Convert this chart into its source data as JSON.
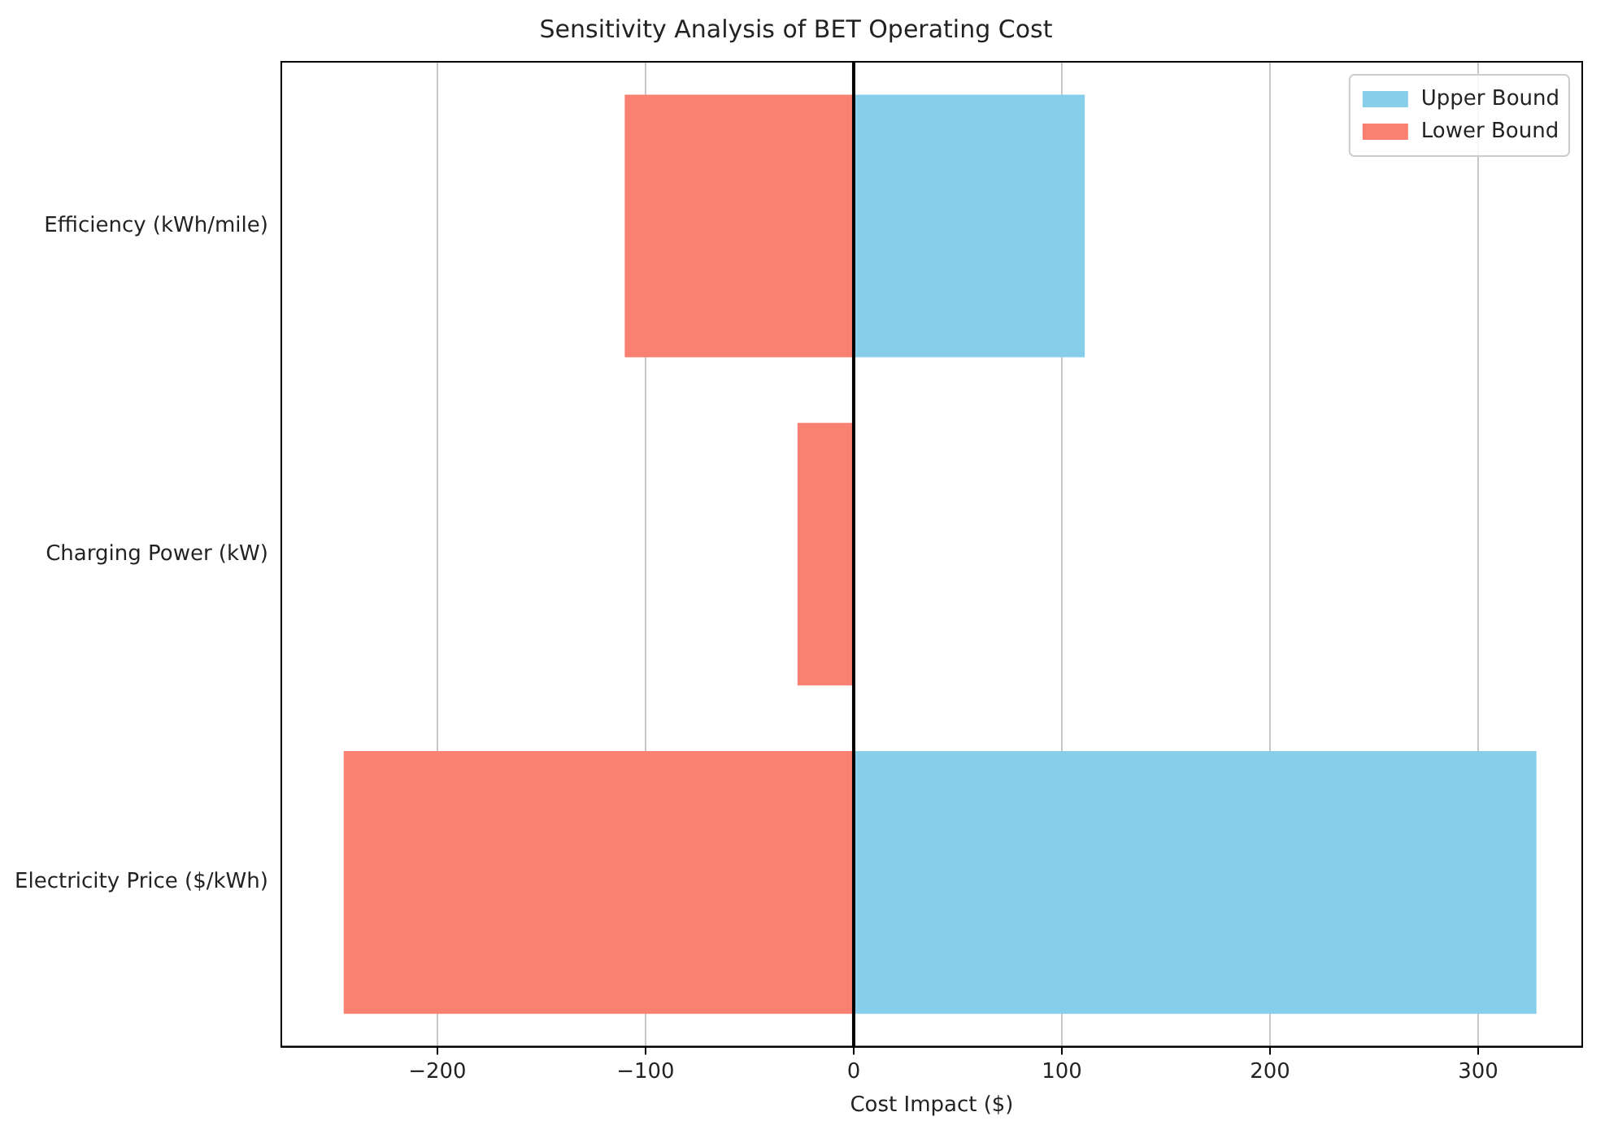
{
  "chart_data": {
    "type": "bar",
    "orientation": "horizontal",
    "stacked": true,
    "title": "Sensitivity Analysis of BET Operating Cost",
    "xlabel": "Cost Impact ($)",
    "categories": [
      "Efficiency (kWh/mile)",
      "Charging Power (kW)",
      "Electricity Price ($/kWh)"
    ],
    "series": [
      {
        "name": "Upper Bound",
        "color": "#87ceeb",
        "values": [
          111,
          0,
          328
        ]
      },
      {
        "name": "Lower Bound",
        "color": "#fa8072",
        "values": [
          -110,
          -27,
          -245
        ]
      }
    ],
    "xlim": [
      -275,
      350
    ],
    "xticks": [
      -200,
      -100,
      0,
      100,
      200,
      300
    ],
    "ref_lines": [
      {
        "axis": "x",
        "value": 0,
        "color": "#000000"
      }
    ],
    "grid": "x",
    "legend": "top right"
  }
}
